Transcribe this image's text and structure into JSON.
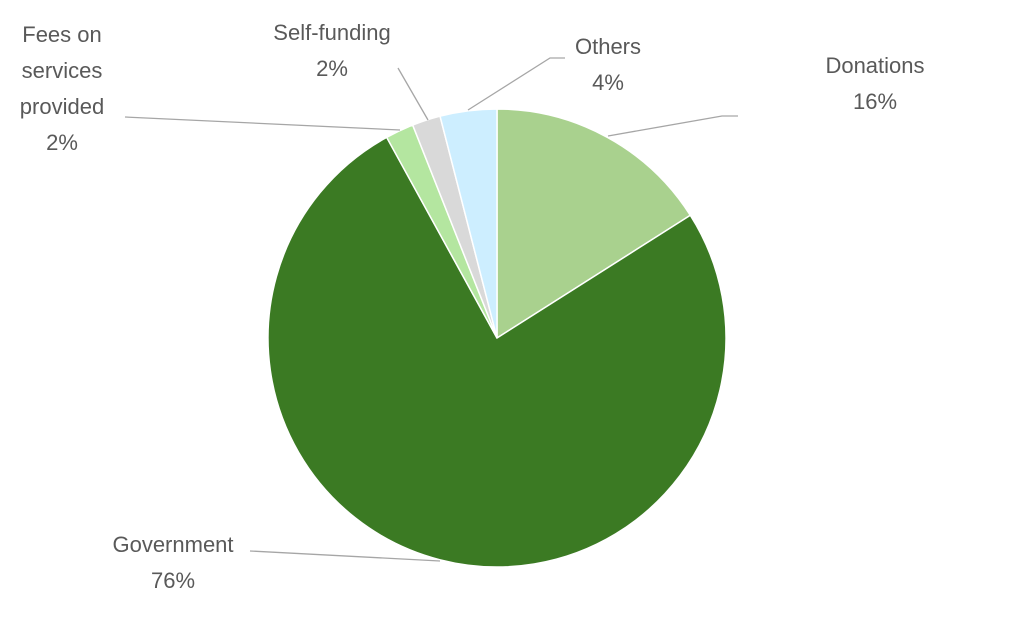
{
  "chart_data": {
    "type": "pie",
    "categories": [
      "Donations",
      "Government",
      "Fees on services provided",
      "Self-funding",
      "Others"
    ],
    "values": [
      16,
      76,
      2,
      2,
      4
    ],
    "value_labels": [
      "16%",
      "76%",
      "2%",
      "2%",
      "4%"
    ],
    "colors": [
      "#a9d18e",
      "#3b7a23",
      "#b4e6a0",
      "#d9d9d9",
      "#cdeeff"
    ]
  }
}
